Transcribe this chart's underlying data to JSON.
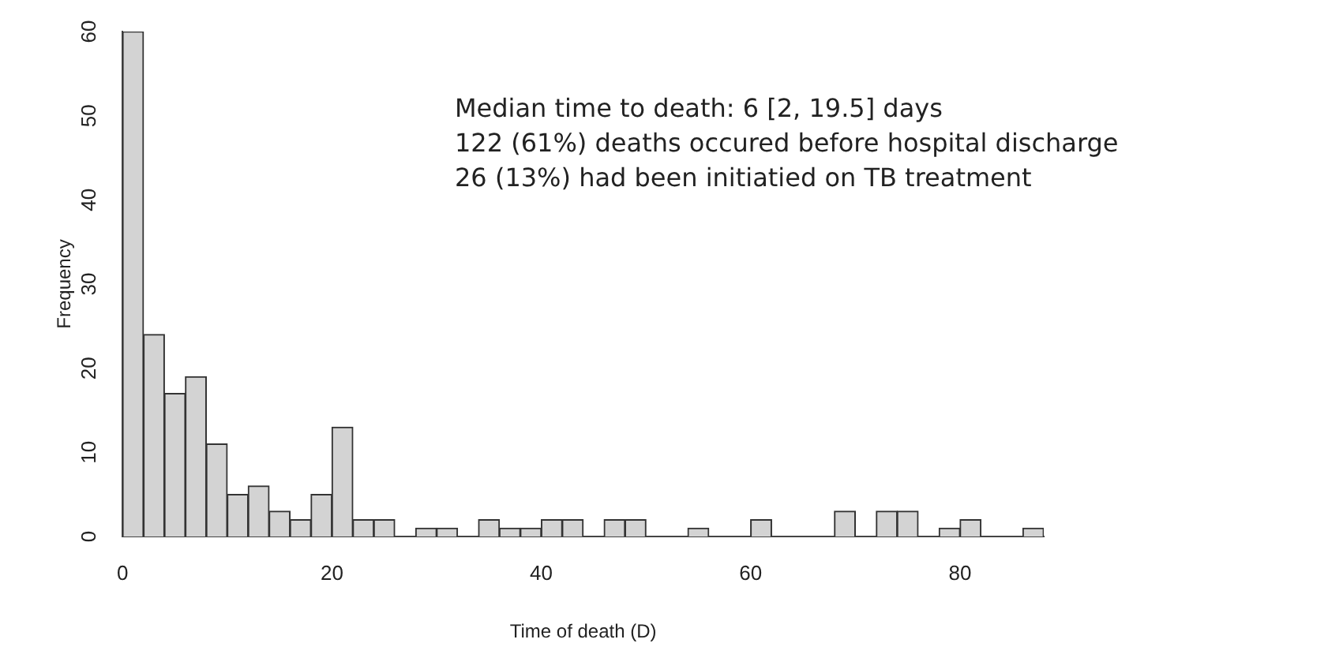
{
  "chart_data": {
    "type": "histogram",
    "xlabel": "Time of death (D)",
    "ylabel": "Frequency",
    "bins": [
      0,
      2,
      4,
      6,
      8,
      10,
      12,
      14,
      16,
      18,
      20,
      22,
      24,
      26,
      28,
      30,
      32,
      34,
      36,
      38,
      40,
      42,
      44,
      46,
      48,
      50,
      52,
      54,
      56,
      58,
      60,
      62,
      64,
      66,
      68,
      70,
      72,
      74,
      76,
      78,
      80,
      82,
      84,
      86,
      88
    ],
    "values": [
      60,
      24,
      17,
      19,
      11,
      5,
      6,
      3,
      2,
      5,
      13,
      2,
      2,
      0,
      1,
      1,
      0,
      2,
      1,
      1,
      2,
      2,
      0,
      2,
      2,
      0,
      0,
      1,
      0,
      0,
      2,
      0,
      0,
      0,
      3,
      0,
      3,
      3,
      0,
      1,
      2,
      0,
      0,
      1
    ],
    "color": "#d3d3d3",
    "xlim": [
      0,
      88
    ],
    "xticks": [
      0,
      20,
      40,
      60,
      80
    ],
    "ylim": [
      0,
      60
    ],
    "yticks": [
      0,
      10,
      20,
      30,
      40,
      50,
      60
    ],
    "grid": false,
    "annotations": [
      "Median time to death: 6 [2, 19.5] days",
      "122 (61%) deaths occured before hospital discharge",
      "26 (13%) had been initiatied on TB treatment"
    ]
  }
}
